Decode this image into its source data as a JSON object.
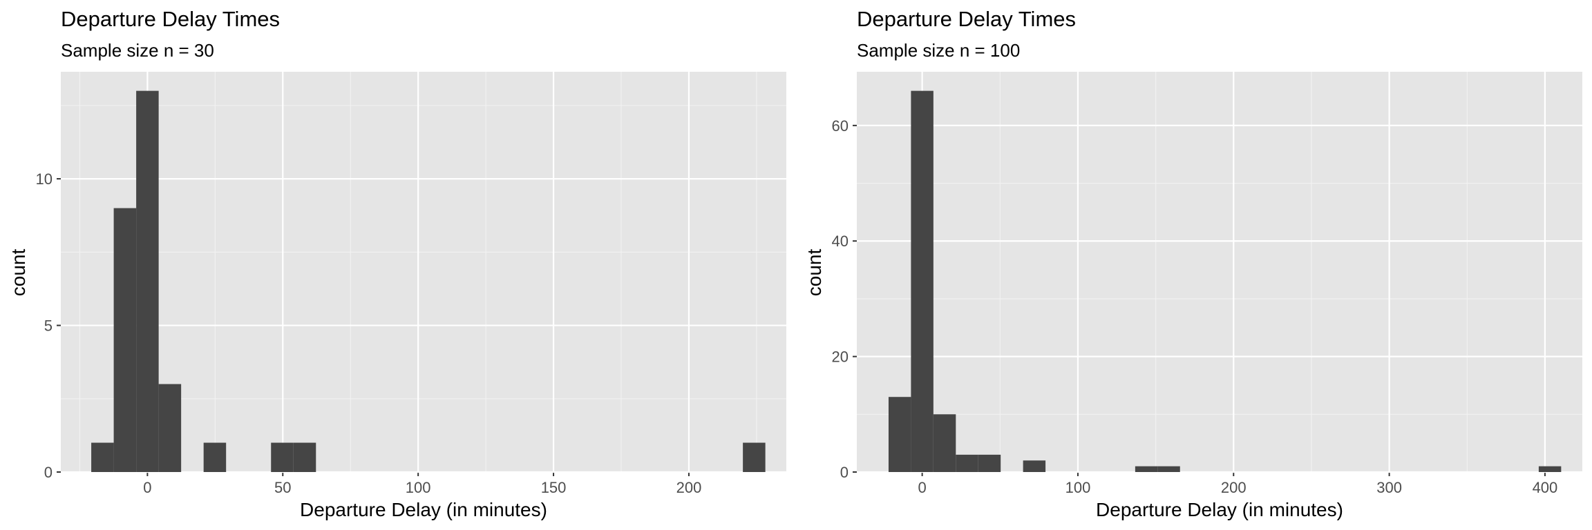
{
  "chart_data": [
    {
      "type": "bar",
      "chart_kind": "histogram",
      "title": "Departure Delay Times",
      "subtitle": "Sample size n = 30",
      "xlabel": "Departure Delay (in minutes)",
      "ylabel": "count",
      "xlim": [
        -32,
        236
      ],
      "ylim": [
        0,
        13.65
      ],
      "x_ticks": [
        0,
        50,
        100,
        150,
        200
      ],
      "x_tick_labels": [
        "0",
        "50",
        "100",
        "150",
        "200"
      ],
      "y_ticks": [
        0,
        5,
        10
      ],
      "y_tick_labels": [
        "0",
        "5",
        "10"
      ],
      "grid": true,
      "bin_width": 8.3,
      "bins": [
        {
          "x": -16.6,
          "count": 1
        },
        {
          "x": -8.3,
          "count": 9
        },
        {
          "x": 0,
          "count": 13
        },
        {
          "x": 8.3,
          "count": 3
        },
        {
          "x": 24.9,
          "count": 1
        },
        {
          "x": 49.8,
          "count": 1
        },
        {
          "x": 58.1,
          "count": 1
        },
        {
          "x": 224.1,
          "count": 1
        }
      ]
    },
    {
      "type": "bar",
      "chart_kind": "histogram",
      "title": "Departure Delay Times",
      "subtitle": "Sample size n = 100",
      "xlabel": "Departure Delay (in minutes)",
      "ylabel": "count",
      "xlim": [
        -42,
        424
      ],
      "ylim": [
        0,
        69.3
      ],
      "x_ticks": [
        0,
        100,
        200,
        300,
        400
      ],
      "x_tick_labels": [
        "0",
        "100",
        "200",
        "300",
        "400"
      ],
      "y_ticks": [
        0,
        20,
        40,
        60
      ],
      "y_tick_labels": [
        "0",
        "20",
        "40",
        "60"
      ],
      "grid": true,
      "bin_width": 14.4,
      "bins": [
        {
          "x": -14.4,
          "count": 13
        },
        {
          "x": 0,
          "count": 66
        },
        {
          "x": 14.4,
          "count": 10
        },
        {
          "x": 28.8,
          "count": 3
        },
        {
          "x": 43.2,
          "count": 3
        },
        {
          "x": 72,
          "count": 2
        },
        {
          "x": 144,
          "count": 1
        },
        {
          "x": 158.4,
          "count": 1
        },
        {
          "x": 403.2,
          "count": 1
        }
      ]
    }
  ]
}
